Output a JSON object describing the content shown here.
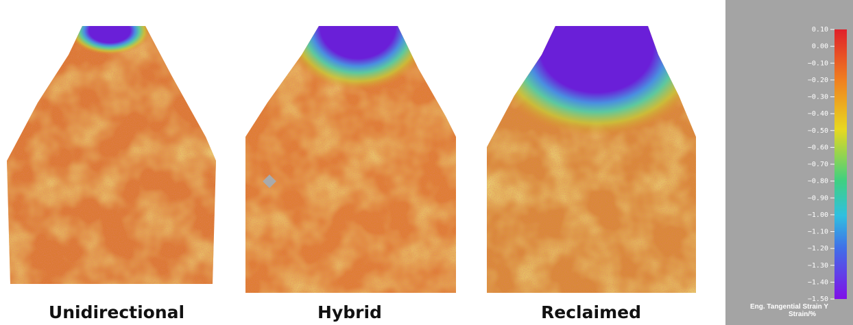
{
  "panels": [
    {
      "label": "Unidirectional"
    },
    {
      "label": "Hybrid"
    },
    {
      "label": "Reclaimed"
    }
  ],
  "colorbar": {
    "title": "Eng. Tangential Strain Y",
    "unit": "Strain/%",
    "ticks": [
      {
        "value": 0.1,
        "label": "0.10"
      },
      {
        "value": 0,
        "label": "0.00"
      },
      {
        "value": -0.1,
        "label": "−0.10"
      },
      {
        "value": -0.2,
        "label": "−0.20"
      },
      {
        "value": -0.3,
        "label": "−0.30"
      },
      {
        "value": -0.4,
        "label": "−0.40"
      },
      {
        "value": -0.5,
        "label": "−0.50"
      },
      {
        "value": -0.6,
        "label": "−0.60"
      },
      {
        "value": -0.7,
        "label": "−0.70"
      },
      {
        "value": -0.8,
        "label": "−0.80"
      },
      {
        "value": -0.9,
        "label": "−0.90"
      },
      {
        "value": -1,
        "label": "−1.00"
      },
      {
        "value": -1.1,
        "label": "−1.10"
      },
      {
        "value": -1.2,
        "label": "−1.20"
      },
      {
        "value": -1.3,
        "label": "−1.30"
      },
      {
        "value": -1.4,
        "label": "−1.40"
      },
      {
        "value": -1.5,
        "label": "−1.50"
      }
    ]
  }
}
